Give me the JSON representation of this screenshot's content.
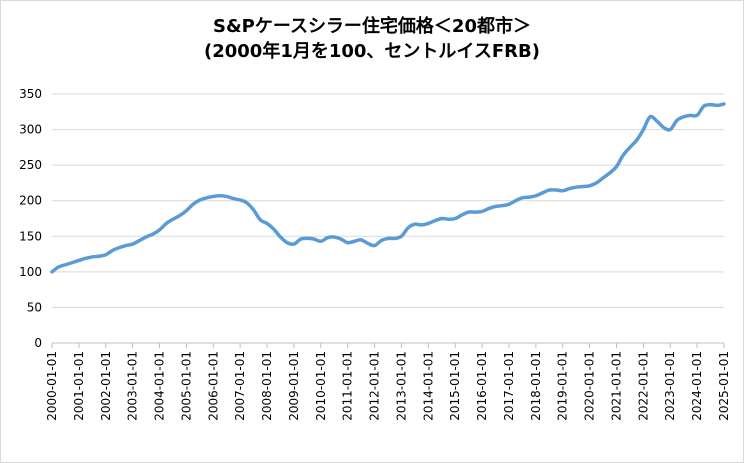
{
  "chart_data": {
    "type": "line",
    "title_line1": "S&Pケースシラー住宅価格＜20都市＞",
    "title_line2": "(2000年1月を100、セントルイスFRB)",
    "xlabel": "",
    "ylabel": "",
    "ylim": [
      0,
      350
    ],
    "yticks": [
      0,
      50,
      100,
      150,
      200,
      250,
      300,
      350
    ],
    "grid": true,
    "legend": "none",
    "line_color": "#5b9bd5",
    "xticks": [
      "2000-01-01",
      "2001-01-01",
      "2002-01-01",
      "2003-01-01",
      "2004-01-01",
      "2005-01-01",
      "2006-01-01",
      "2007-01-01",
      "2008-01-01",
      "2009-01-01",
      "2010-01-01",
      "2011-01-01",
      "2012-01-01",
      "2013-01-01",
      "2014-01-01",
      "2015-01-01",
      "2016-01-01",
      "2017-01-01",
      "2018-01-01",
      "2019-01-01",
      "2020-01-01",
      "2021-01-01",
      "2022-01-01",
      "2023-01-01",
      "2024-01-01",
      "2025-01-01"
    ],
    "series": [
      {
        "x": [
          "2000-01",
          "2000-04",
          "2000-07",
          "2000-10",
          "2001-01",
          "2001-04",
          "2001-07",
          "2001-10",
          "2002-01",
          "2002-04",
          "2002-07",
          "2002-10",
          "2003-01",
          "2003-04",
          "2003-07",
          "2003-10",
          "2004-01",
          "2004-04",
          "2004-07",
          "2004-10",
          "2005-01",
          "2005-04",
          "2005-07",
          "2005-10",
          "2006-01",
          "2006-04",
          "2006-07",
          "2006-10",
          "2007-01",
          "2007-04",
          "2007-07",
          "2007-10",
          "2008-01",
          "2008-04",
          "2008-07",
          "2008-10",
          "2009-01",
          "2009-04",
          "2009-07",
          "2009-10",
          "2010-01",
          "2010-04",
          "2010-07",
          "2010-10",
          "2011-01",
          "2011-04",
          "2011-07",
          "2011-10",
          "2012-01",
          "2012-04",
          "2012-07",
          "2012-10",
          "2013-01",
          "2013-04",
          "2013-07",
          "2013-10",
          "2014-01",
          "2014-04",
          "2014-07",
          "2014-10",
          "2015-01",
          "2015-04",
          "2015-07",
          "2015-10",
          "2016-01",
          "2016-04",
          "2016-07",
          "2016-10",
          "2017-01",
          "2017-04",
          "2017-07",
          "2017-10",
          "2018-01",
          "2018-04",
          "2018-07",
          "2018-10",
          "2019-01",
          "2019-04",
          "2019-07",
          "2019-10",
          "2020-01",
          "2020-04",
          "2020-07",
          "2020-10",
          "2021-01",
          "2021-04",
          "2021-07",
          "2021-10",
          "2022-01",
          "2022-04",
          "2022-07",
          "2022-10",
          "2023-01",
          "2023-04",
          "2023-07",
          "2023-10",
          "2024-01",
          "2024-04",
          "2024-07",
          "2024-10",
          "2025-01"
        ],
        "values": [
          100,
          107,
          110,
          113,
          116,
          119,
          121,
          122,
          124,
          130,
          134,
          137,
          139,
          144,
          149,
          153,
          159,
          168,
          174,
          179,
          186,
          195,
          201,
          204,
          206,
          207,
          206,
          203,
          201,
          197,
          187,
          173,
          168,
          160,
          149,
          141,
          139,
          146,
          147,
          146,
          143,
          148,
          149,
          146,
          141,
          143,
          145,
          140,
          137,
          144,
          147,
          147,
          150,
          162,
          167,
          166,
          168,
          172,
          175,
          174,
          175,
          180,
          184,
          184,
          185,
          189,
          192,
          193,
          195,
          200,
          204,
          205,
          207,
          211,
          215,
          215,
          214,
          217,
          219,
          220,
          221,
          225,
          232,
          239,
          248,
          264,
          275,
          285,
          300,
          318,
          312,
          303,
          300,
          313,
          318,
          320,
          320,
          333,
          335,
          334,
          336
        ]
      }
    ]
  }
}
